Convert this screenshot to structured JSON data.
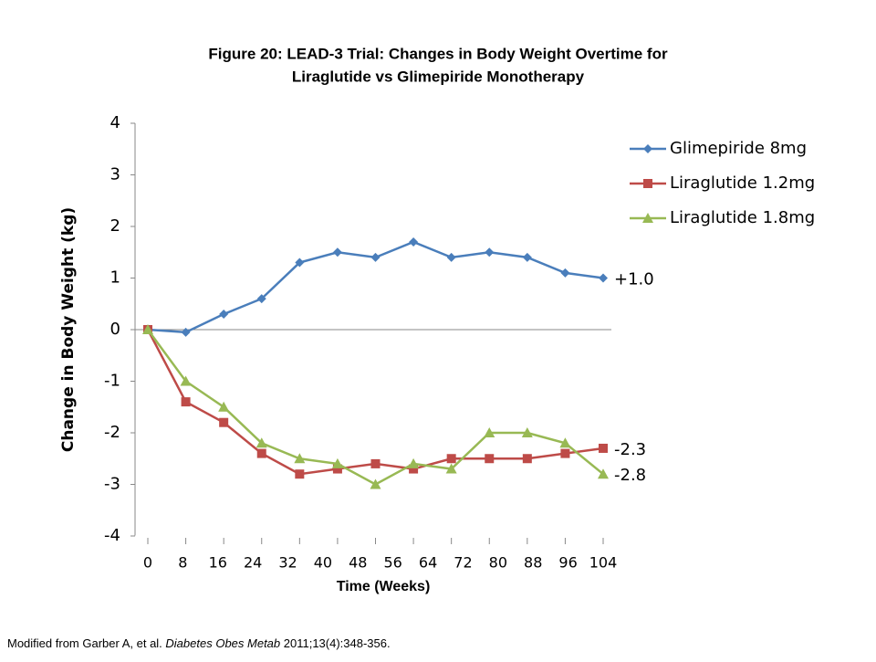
{
  "chart_data": {
    "type": "line",
    "title": [
      "Figure 20: LEAD-3 Trial: Changes in Body Weight Overtime for",
      "Liraglutide vs Glimepiride Monotherapy"
    ],
    "y_label": "Change in Body Weight (kg)",
    "x_label": "Time (Weeks)",
    "categories": [
      null,
      null,
      null,
      null,
      null,
      null,
      null,
      null,
      null,
      null,
      null,
      null,
      null
    ],
    "xlim": [
      0,
      104
    ],
    "xticks": [
      0,
      8,
      16,
      24,
      32,
      40,
      48,
      56,
      64,
      72,
      80,
      88,
      96,
      104
    ],
    "ylim": [
      -4,
      4
    ],
    "yticks": [
      -4,
      -3,
      -2,
      -1,
      0,
      1,
      2,
      3,
      4
    ],
    "legend": "right",
    "series": [
      {
        "name": "Glimepiride 8mg",
        "color": "#4a7ebb",
        "marker": "diamond",
        "end_label": "+1.0",
        "values": [
          0,
          -0.05,
          0.3,
          0.6,
          1.3,
          1.5,
          1.4,
          1.7,
          1.4,
          1.5,
          1.4,
          1.1,
          1.0
        ]
      },
      {
        "name": "Liraglutide 1.2mg",
        "color": "#be4b48",
        "marker": "square",
        "end_label": "-2.3",
        "values": [
          0,
          -1.4,
          -1.8,
          -2.4,
          -2.8,
          -2.7,
          -2.6,
          -2.7,
          -2.5,
          -2.5,
          -2.5,
          -2.4,
          -2.3
        ]
      },
      {
        "name": "Liraglutide 1.8mg",
        "color": "#98b954",
        "marker": "triangle",
        "end_label": "-2.8",
        "values": [
          0,
          -1.0,
          -1.5,
          -2.2,
          -2.5,
          -2.6,
          -3.0,
          -2.6,
          -2.7,
          -2.0,
          -2.0,
          -2.2,
          -2.8
        ]
      }
    ]
  },
  "footnote": {
    "before": "Modified from Garber A, et al. ",
    "journal": "Diabetes Obes Metab",
    "after": " 2011;13(4):348-356."
  }
}
